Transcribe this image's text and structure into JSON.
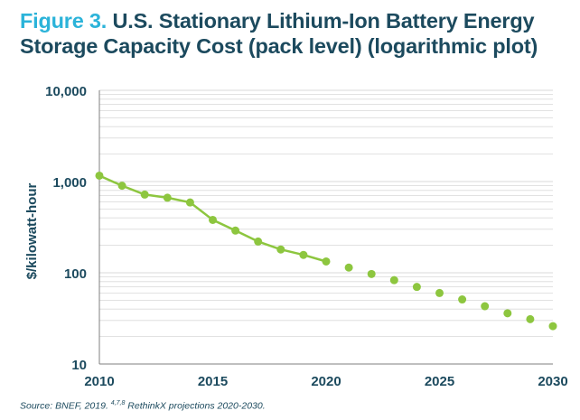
{
  "title": {
    "figure_label": "Figure 3.",
    "line1": "U.S. Stationary Lithium-Ion Battery Energy",
    "line2": "Storage Capacity Cost (pack level) (logarithmic plot)"
  },
  "source": {
    "prefix": "Source: BNEF, 2019. ",
    "refs": "4,7,8",
    "suffix": " RethinkX projections 2020-2030."
  },
  "colors": {
    "title_dark": "#1c4a5e",
    "title_accent": "#2bb3d9",
    "series": "#8dc63f",
    "grid": "#d9d9d9",
    "axis_text": "#1c4a5e"
  },
  "chart_data": {
    "type": "line",
    "title": "U.S. Stationary Lithium-Ion Battery Energy Storage Capacity Cost (pack level) (logarithmic plot)",
    "xlabel": "",
    "ylabel": "$/kilowatt-hour",
    "y_scale": "log",
    "xlim": [
      2010,
      2030
    ],
    "ylim": [
      10,
      10000
    ],
    "grid": true,
    "legend": "none",
    "x_ticks": [
      "2010",
      "2015",
      "2020",
      "2025",
      "2030"
    ],
    "x_tick_values": [
      2010,
      2015,
      2020,
      2025,
      2030
    ],
    "y_ticks": [
      "10",
      "100",
      "1,000",
      "10,000"
    ],
    "y_tick_values": [
      10,
      100,
      1000,
      10000
    ],
    "series": [
      {
        "style": "solid-line-with-markers",
        "x": [
          2010,
          2011,
          2012,
          2013,
          2014,
          2015,
          2016,
          2017,
          2018,
          2019,
          2020
        ],
        "values": [
          1160,
          900,
          720,
          665,
          590,
          380,
          290,
          220,
          180,
          157,
          133
        ]
      },
      {
        "style": "markers-only",
        "x": [
          2021,
          2022,
          2023,
          2024,
          2025,
          2026,
          2027,
          2028,
          2029,
          2030
        ],
        "values": [
          114,
          97,
          83,
          70,
          60,
          51,
          43,
          36,
          31,
          26
        ]
      }
    ]
  }
}
